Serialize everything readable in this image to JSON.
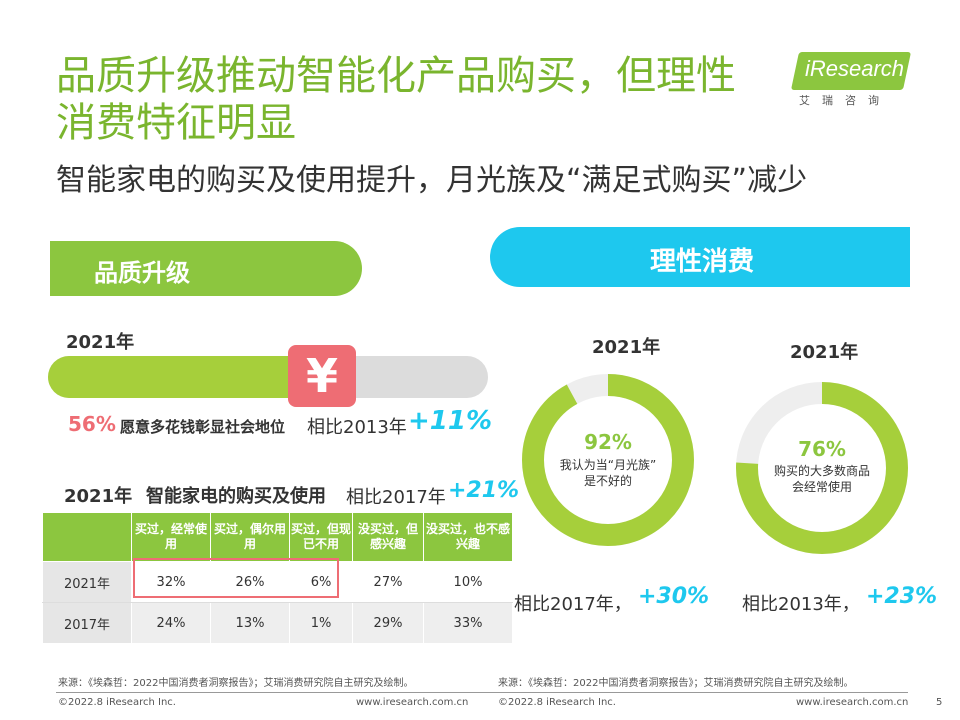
{
  "header": {
    "title_line1": "品质升级推动智能化产品购买，但理性",
    "title_line2": "消费特征明显",
    "subtitle": "智能家电的购买及使用提升，月光族及“满足式购买”减少"
  },
  "logo": {
    "brand": "iResearch",
    "cn": "艾瑞咨询"
  },
  "left": {
    "banner": "品质升级",
    "year": "2021年",
    "bar": {
      "value": 0.56,
      "icon": "yen-icon",
      "symbol": "¥"
    },
    "pct": "56%",
    "desc": "愿意多花钱彰显社会地位",
    "compare": "相比2013年",
    "change": "+11%",
    "table_title_year": "2021年",
    "table_title": "智能家电的购买及使用",
    "table_compare": "相比2017年",
    "table_change": "+21%",
    "table": {
      "headers": [
        "",
        "买过，经常使用",
        "买过，偶尔用用",
        "买过，但现已不用",
        "没买过，但感兴趣",
        "没买过，也不感兴趣"
      ],
      "rows": [
        [
          "2021年",
          "32%",
          "26%",
          "6%",
          "27%",
          "10%"
        ],
        [
          "2017年",
          "24%",
          "13%",
          "1%",
          "29%",
          "33%"
        ]
      ]
    }
  },
  "right": {
    "banner": "理性消费",
    "donuts": [
      {
        "year": "2021年",
        "pct": "92%",
        "value": 0.92,
        "text_line1": "我认为当“月光族”",
        "text_line2": "是不好的",
        "compare": "相比2017年，",
        "change": "+30%"
      },
      {
        "year": "2021年",
        "pct": "76%",
        "value": 0.76,
        "text_line1": "购买的大多数商品",
        "text_line2": "会经常使用",
        "compare": "相比2013年，",
        "change": "+23%"
      }
    ]
  },
  "footer": {
    "source_left": "来源：《埃森哲：2022中国消费者洞察报告》；艾瑞消费研究院自主研究及绘制。",
    "copyright_left": "©2022.8 iResearch Inc.",
    "url_left": "www.iresearch.com.cn",
    "source_right": "来源：《埃森哲：2022中国消费者洞察报告》；艾瑞消费研究院自主研究及绘制。",
    "copyright_right": "©2022.8 iResearch Inc.",
    "url_right": "www.iresearch.com.cn",
    "page": "5"
  },
  "colors": {
    "green": "#8cc63f",
    "blue": "#1ec8ee",
    "red": "#ee6d74",
    "grey": "#dcdcdc"
  }
}
